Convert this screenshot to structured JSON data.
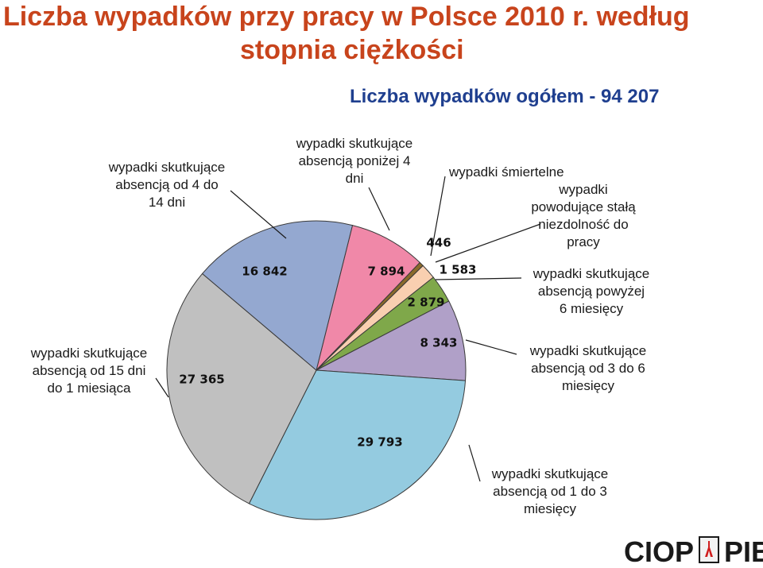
{
  "title": {
    "line1": "Liczba wypadków przy pracy w Polsce 2010 r. według",
    "line2": "stopnia ciężkości"
  },
  "subtitle": "Liczba wypadków ogółem - 94 207",
  "logo": {
    "left": "CIOP",
    "right": "PIB"
  },
  "chart_data": {
    "type": "pie",
    "title": "Liczba wypadków przy pracy w Polsce 2010 r. według stopnia ciężkości",
    "subtitle": "Liczba wypadków ogółem - 94 207",
    "total": 94207,
    "slices": [
      {
        "key": "lt4",
        "value": 7894,
        "label_value": "7 894",
        "color": "#f088a8",
        "label_lines": [
          "wypadki skutkujące",
          "absencją poniżej 4",
          "dni"
        ]
      },
      {
        "key": "fatal",
        "value": 446,
        "label_value": "446",
        "color": "#8a6a2a",
        "label_lines": [
          "wypadki śmiertelne"
        ]
      },
      {
        "key": "perm",
        "value": 1583,
        "label_value": "1 583",
        "color": "#f9cfb0",
        "label_lines": [
          "wypadki",
          "powodujące stałą",
          "niezdolność do",
          "pracy"
        ]
      },
      {
        "key": "gt6m",
        "value": 2879,
        "label_value": "2 879",
        "color": "#7fa84a",
        "label_lines": [
          "wypadki skutkujące",
          "absencją powyżej",
          "6 miesięcy"
        ]
      },
      {
        "key": "m3to6",
        "value": 8343,
        "label_value": "8 343",
        "color": "#b0a0c8",
        "label_lines": [
          "wypadki skutkujące",
          "absencją od 3 do 6",
          "miesięcy"
        ]
      },
      {
        "key": "m1to3",
        "value": 29793,
        "label_value": "29 793",
        "color": "#94cbe0",
        "label_lines": [
          "wypadki skutkujące",
          "absencją od 1 do 3",
          "miesięcy"
        ]
      },
      {
        "key": "d15to1m",
        "value": 27365,
        "label_value": "27 365",
        "color": "#c0c0c0",
        "label_lines": [
          "wypadki skutkujące",
          "absencją od 15 dni",
          "do 1 miesiąca"
        ]
      },
      {
        "key": "d4to14",
        "value": 16842,
        "label_value": "16 842",
        "color": "#94a8d0",
        "label_lines": [
          "wypadki skutkujące",
          "absencją od 4 do",
          "14 dni"
        ]
      }
    ]
  }
}
